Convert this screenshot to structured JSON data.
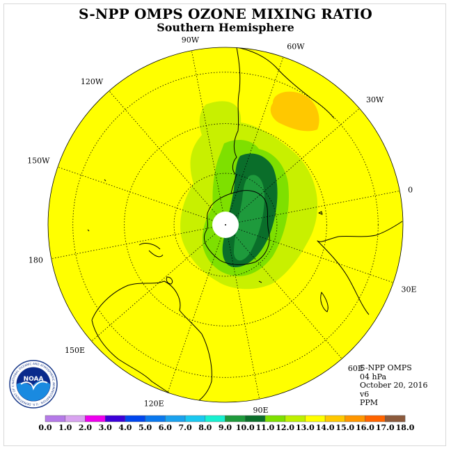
{
  "title": "S-NPP OMPS OZONE MIXING RATIO",
  "subtitle": "Southern Hemisphere",
  "longitude_labels": [
    {
      "label": "90W",
      "lon": -90
    },
    {
      "label": "60W",
      "lon": -60
    },
    {
      "label": "30W",
      "lon": -30
    },
    {
      "label": "0",
      "lon": 0
    },
    {
      "label": "30E",
      "lon": 30
    },
    {
      "label": "60E",
      "lon": 60
    },
    {
      "label": "90E",
      "lon": 90
    },
    {
      "label": "120E",
      "lon": 120
    },
    {
      "label": "150E",
      "lon": 150
    },
    {
      "label": "180",
      "lon": 180
    },
    {
      "label": "150W",
      "lon": -150
    },
    {
      "label": "120W",
      "lon": -120
    }
  ],
  "info": {
    "product": "S-NPP OMPS",
    "level": "04 hPa",
    "date": "October 20, 2016",
    "version": "v6",
    "units": "PPM"
  },
  "colorbar": {
    "labels": [
      "0.0",
      "1.0",
      "2.0",
      "3.0",
      "4.0",
      "5.0",
      "6.0",
      "7.0",
      "8.0",
      "9.0",
      "10.0",
      "11.0",
      "12.0",
      "13.0",
      "14.0",
      "15.0",
      "16.0",
      "17.0",
      "18.0"
    ],
    "colors": [
      "#b57ae8",
      "#d9a3f0",
      "#ee00ee",
      "#3c00d8",
      "#0046ee",
      "#0a78ee",
      "#1aa2ee",
      "#1ac8f0",
      "#18f0d0",
      "#1e9a3c",
      "#0a6e2a",
      "#7ee000",
      "#bef000",
      "#ffff00",
      "#ffc800",
      "#ff9600",
      "#ff6400",
      "#ff0000",
      "#8c5a3c"
    ]
  },
  "logo": {
    "text": "NOAA",
    "ring_text": "NATIONAL OCEANIC AND ATMOSPHERIC ADMINISTRATION · U.S. DEPARTMENT OF COMMERCE"
  }
}
